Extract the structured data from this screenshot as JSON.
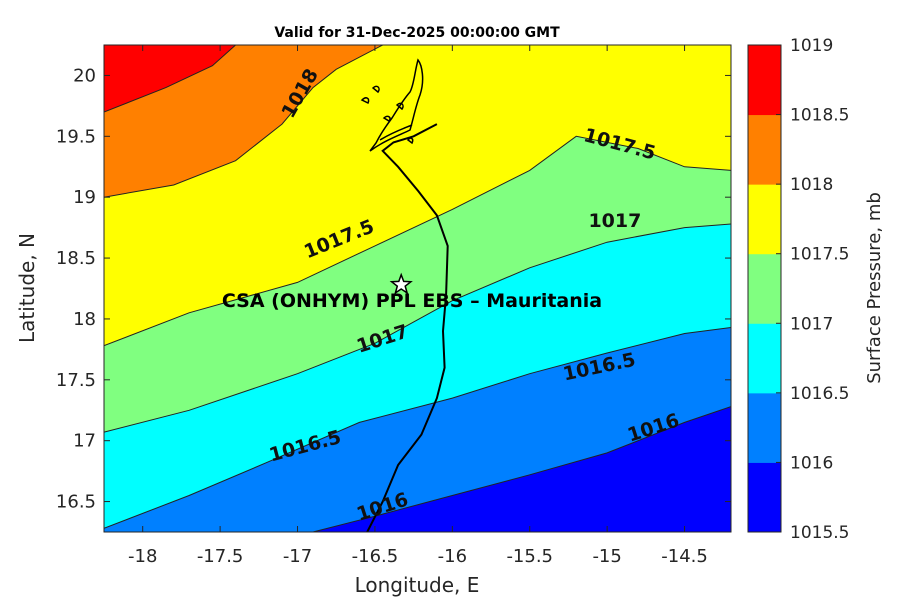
{
  "title": "Valid for 31-Dec-2025 00:00:00 GMT",
  "chart_data": {
    "type": "contourf",
    "xlabel": "Longitude, E",
    "ylabel": "Latitude, N",
    "xlim": [
      -18.25,
      -14.2
    ],
    "ylim": [
      16.25,
      20.25
    ],
    "x_ticks": [
      -18,
      -17.5,
      -17,
      -16.5,
      -16,
      -15.5,
      -15,
      -14.5
    ],
    "y_ticks": [
      16.5,
      17,
      17.5,
      18,
      18.5,
      19,
      19.5,
      20
    ],
    "x_tick_labels": [
      "-18",
      "-17.5",
      "-17",
      "-16.5",
      "-16",
      "-15.5",
      "-15",
      "-14.5"
    ],
    "y_tick_labels": [
      "16.5",
      "17",
      "17.5",
      "18",
      "18.5",
      "19",
      "19.5",
      "20"
    ],
    "colorbar": {
      "label": "Surface Pressure, mb",
      "levels": [
        1015.5,
        1016,
        1016.5,
        1017,
        1017.5,
        1018,
        1018.5,
        1019
      ],
      "tick_labels": [
        "1015.5",
        "1016",
        "1016.5",
        "1017",
        "1017.5",
        "1018",
        "1018.5",
        "1019"
      ],
      "colors": [
        "#0000ff",
        "#0080ff",
        "#00ffff",
        "#80ff80",
        "#ffff00",
        "#ff8000",
        "#ff0000",
        "#800000"
      ]
    },
    "contours": [
      {
        "level": 1016,
        "label": "1016",
        "points": [
          [
            -16.9,
            16.25
          ],
          [
            -16.5,
            16.38
          ],
          [
            -16.0,
            16.55
          ],
          [
            -15.5,
            16.72
          ],
          [
            -15.0,
            16.9
          ],
          [
            -14.5,
            17.15
          ],
          [
            -14.2,
            17.28
          ]
        ],
        "labels": [
          {
            "x": -16.45,
            "y": 16.45,
            "text": "1016",
            "angle": -18
          },
          {
            "x": -14.7,
            "y": 17.1,
            "text": "1016",
            "angle": -18
          }
        ]
      },
      {
        "level": 1016.5,
        "label": "1016.5",
        "points": [
          [
            -18.25,
            16.28
          ],
          [
            -17.7,
            16.55
          ],
          [
            -17.2,
            16.82
          ],
          [
            -16.6,
            17.15
          ],
          [
            -16.0,
            17.35
          ],
          [
            -15.5,
            17.55
          ],
          [
            -15.0,
            17.72
          ],
          [
            -14.5,
            17.88
          ],
          [
            -14.2,
            17.93
          ]
        ],
        "labels": [
          {
            "x": -16.95,
            "y": 16.95,
            "text": "1016.5",
            "angle": -15
          },
          {
            "x": -15.05,
            "y": 17.6,
            "text": "1016.5",
            "angle": -12
          }
        ]
      },
      {
        "level": 1017,
        "label": "1017",
        "points": [
          [
            -18.25,
            17.07
          ],
          [
            -17.7,
            17.25
          ],
          [
            -17.0,
            17.55
          ],
          [
            -16.5,
            17.8
          ],
          [
            -16.0,
            18.15
          ],
          [
            -15.5,
            18.42
          ],
          [
            -15.0,
            18.63
          ],
          [
            -14.5,
            18.75
          ],
          [
            -14.2,
            18.78
          ]
        ],
        "labels": [
          {
            "x": -16.45,
            "y": 17.83,
            "text": "1017",
            "angle": -18
          },
          {
            "x": -14.95,
            "y": 18.8,
            "text": "1017",
            "angle": 0
          }
        ]
      },
      {
        "level": 1017.5,
        "label": "1017.5",
        "points": [
          [
            -18.25,
            17.78
          ],
          [
            -17.7,
            18.05
          ],
          [
            -17.0,
            18.3
          ],
          [
            -16.5,
            18.6
          ],
          [
            -16.0,
            18.9
          ],
          [
            -15.5,
            19.22
          ],
          [
            -15.2,
            19.5
          ],
          [
            -14.8,
            19.4
          ],
          [
            -14.5,
            19.25
          ],
          [
            -14.2,
            19.22
          ]
        ],
        "labels": [
          {
            "x": -16.73,
            "y": 18.65,
            "text": "1017.5",
            "angle": -22
          },
          {
            "x": -14.92,
            "y": 19.43,
            "text": "1017.5",
            "angle": 15
          }
        ]
      },
      {
        "level": 1018,
        "label": "1018",
        "points": [
          [
            -18.25,
            19.0
          ],
          [
            -17.8,
            19.1
          ],
          [
            -17.4,
            19.3
          ],
          [
            -17.1,
            19.6
          ],
          [
            -16.9,
            19.9
          ],
          [
            -16.75,
            20.05
          ],
          [
            -16.45,
            20.25
          ]
        ],
        "labels": [
          {
            "x": -16.98,
            "y": 19.85,
            "text": "1018",
            "angle": -60
          }
        ]
      },
      {
        "level": 1018.5,
        "label": "1018.5",
        "points": [
          [
            -18.25,
            19.7
          ],
          [
            -17.85,
            19.9
          ],
          [
            -17.55,
            20.08
          ],
          [
            -17.4,
            20.25
          ]
        ],
        "labels": []
      }
    ],
    "coastline": [
      [
        -16.55,
        16.25
      ],
      [
        -16.45,
        16.5
      ],
      [
        -16.35,
        16.8
      ],
      [
        -16.2,
        17.05
      ],
      [
        -16.1,
        17.35
      ],
      [
        -16.05,
        17.6
      ],
      [
        -16.06,
        17.9
      ],
      [
        -16.04,
        18.2
      ],
      [
        -16.03,
        18.6
      ],
      [
        -16.1,
        18.85
      ],
      [
        -16.22,
        19.05
      ],
      [
        -16.35,
        19.25
      ],
      [
        -16.45,
        19.38
      ],
      [
        -16.38,
        19.45
      ],
      [
        -16.25,
        19.5
      ],
      [
        -16.1,
        19.6
      ]
    ],
    "site": {
      "name": "CSA (ONHYM) PPL EBS  – Mauritania",
      "lon": -16.33,
      "lat": 18.28
    }
  }
}
